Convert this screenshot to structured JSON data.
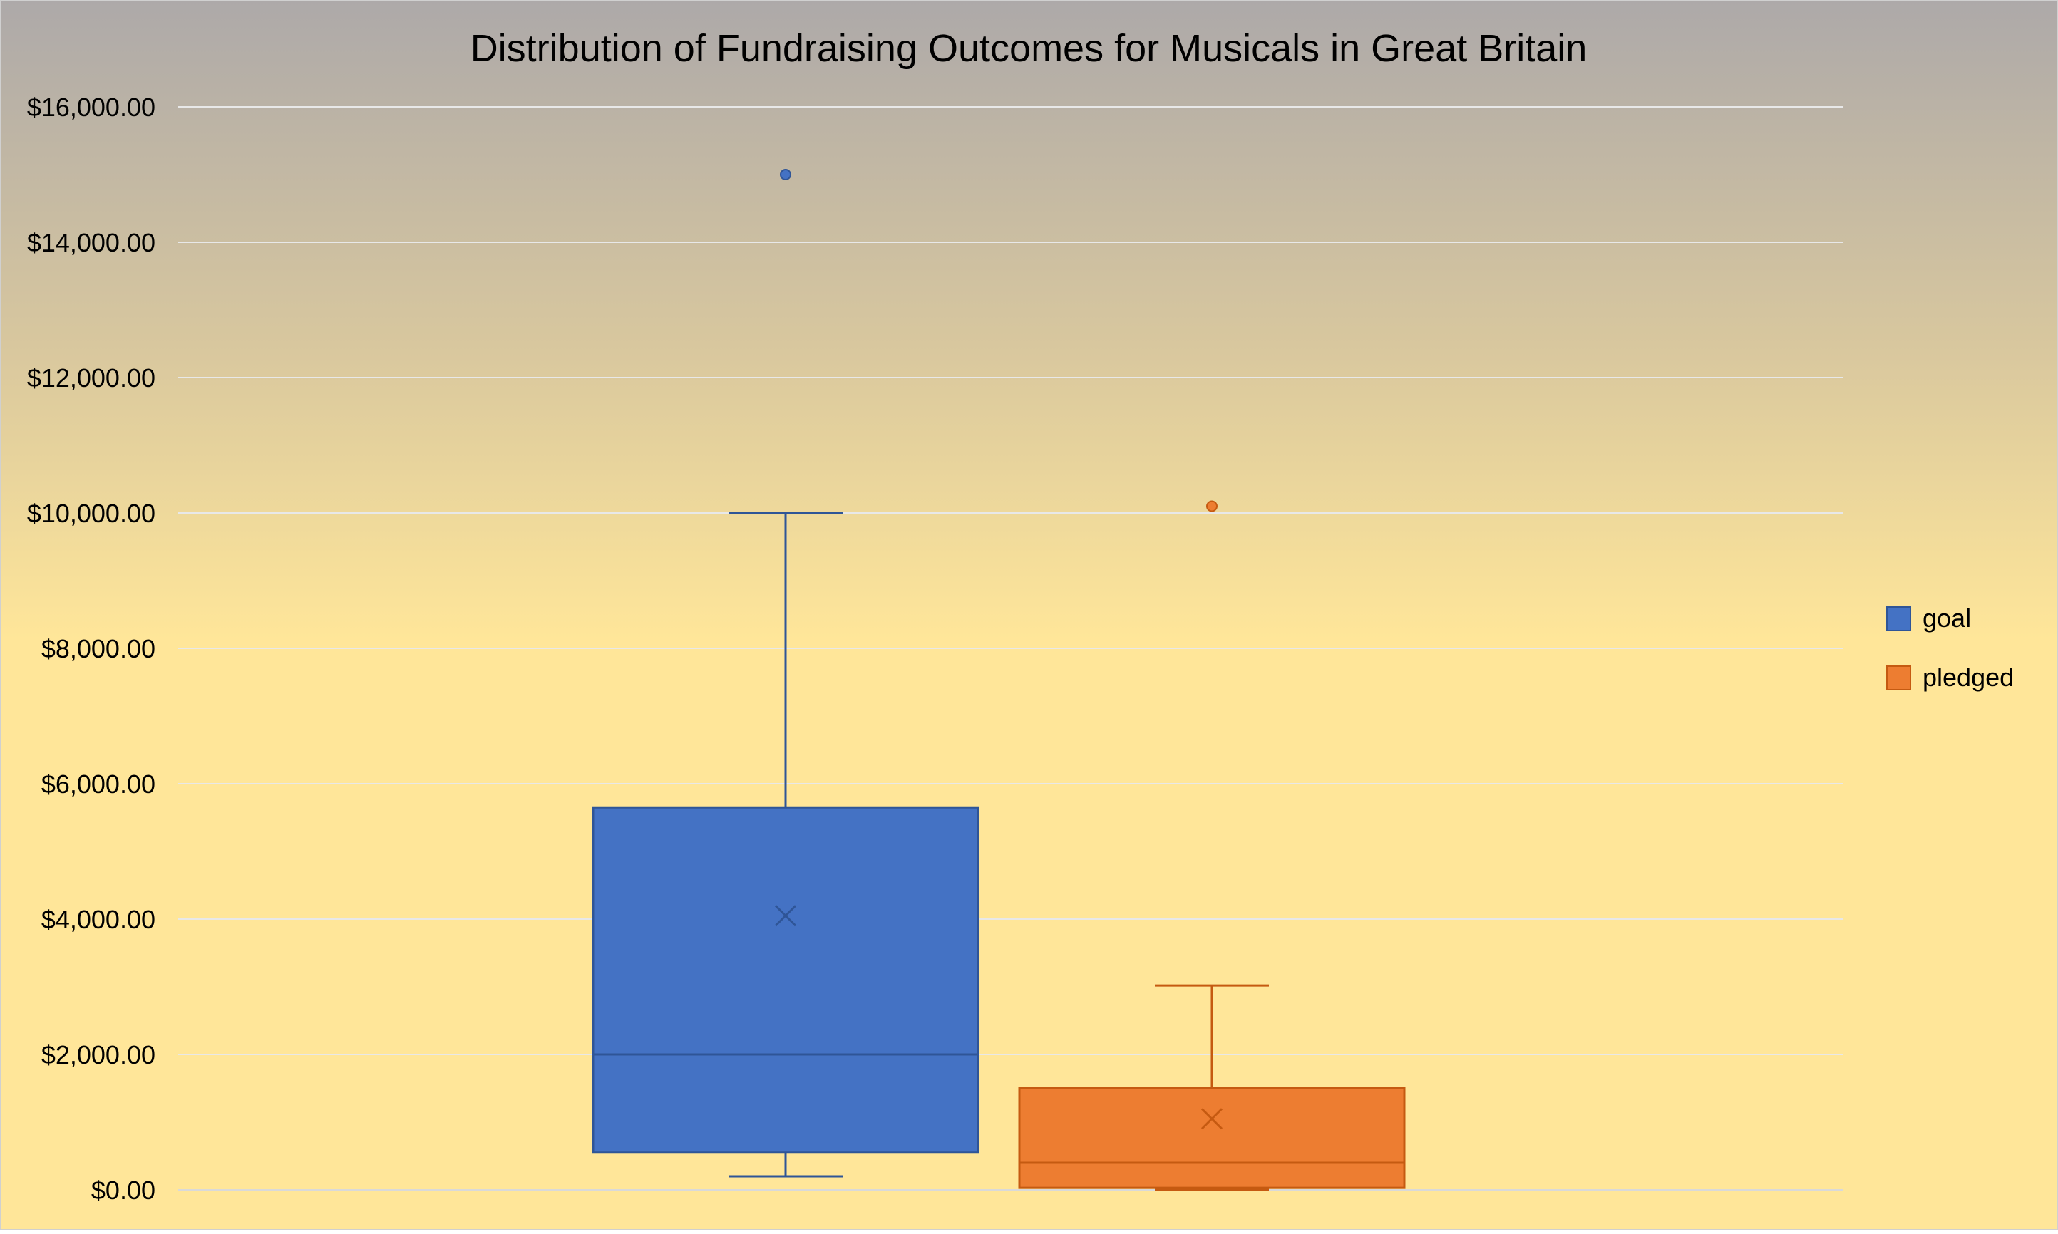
{
  "chart_data": {
    "type": "box",
    "title": "Distribution of Fundraising Outcomes for Musicals in Great Britain",
    "xlabel": "",
    "ylabel": "",
    "ylim": [
      0,
      16000
    ],
    "yticks": [
      0,
      2000,
      4000,
      6000,
      8000,
      10000,
      12000,
      14000,
      16000
    ],
    "ytick_labels": [
      "$0.00",
      "$2,000.00",
      "$4,000.00",
      "$6,000.00",
      "$8,000.00",
      "$10,000.00",
      "$12,000.00",
      "$14,000.00",
      "$16,000.00"
    ],
    "grid": true,
    "legend": {
      "position": "right",
      "entries": [
        "goal",
        "pledged"
      ]
    },
    "series": [
      {
        "name": "goal",
        "color": "#4472C4",
        "stroke": "#2F5597",
        "whisker_low": 200,
        "q1": 550,
        "median": 2000,
        "q3": 5650,
        "whisker_high": 10000,
        "mean": 4050,
        "outliers": [
          15000
        ]
      },
      {
        "name": "pledged",
        "color": "#ED7D31",
        "stroke": "#C55A11",
        "whisker_low": 0,
        "q1": 30,
        "median": 400,
        "q3": 1500,
        "whisker_high": 3020,
        "mean": 1050,
        "outliers": [
          10100
        ]
      }
    ],
    "background_gradient": [
      "#ADA9A9",
      "#D8C79E",
      "#FFE699"
    ]
  }
}
